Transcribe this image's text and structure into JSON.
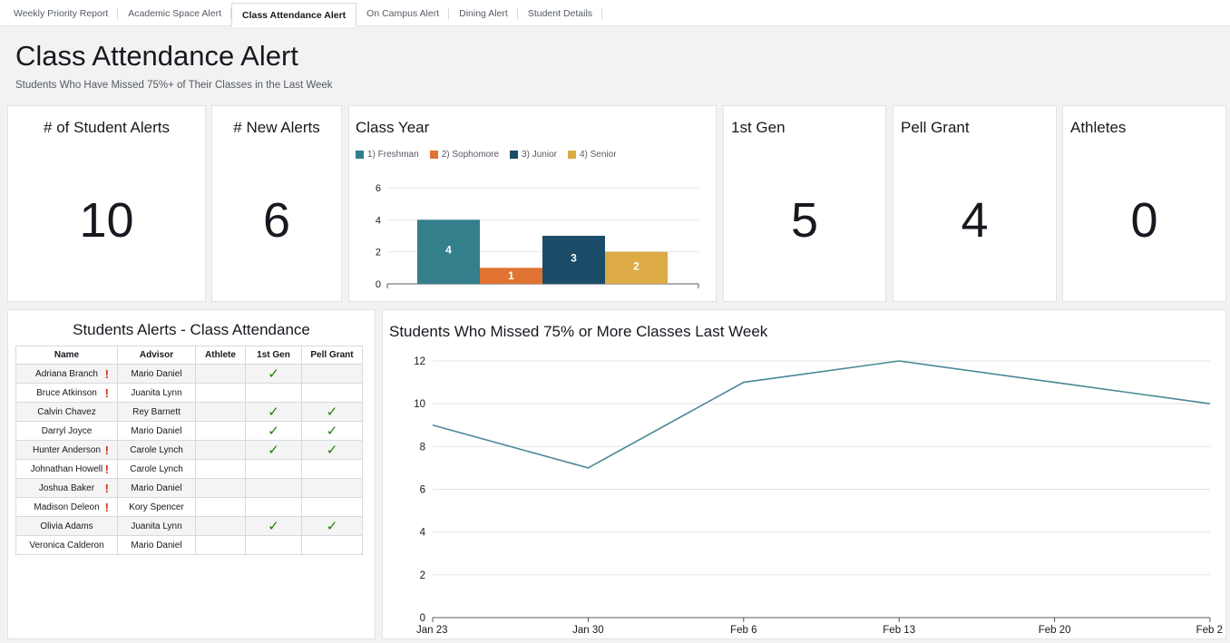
{
  "tabs": [
    {
      "label": "Weekly Priority Report",
      "active": false
    },
    {
      "label": "Academic Space Alert",
      "active": false
    },
    {
      "label": "Class Attendance Alert",
      "active": true
    },
    {
      "label": "On Campus Alert",
      "active": false
    },
    {
      "label": "Dining Alert",
      "active": false
    },
    {
      "label": "Student Details",
      "active": false
    }
  ],
  "page": {
    "title": "Class Attendance Alert",
    "subtitle": "Students Who Have Missed 75%+ of Their Classes in the Last Week"
  },
  "kpis": {
    "student_alerts": {
      "title": "# of Student Alerts",
      "value": "10"
    },
    "new_alerts": {
      "title": "# New Alerts",
      "value": "6"
    },
    "first_gen": {
      "title": "1st Gen",
      "value": "5"
    },
    "pell_grant": {
      "title": "Pell Grant",
      "value": "4"
    },
    "athletes": {
      "title": "Athletes",
      "value": "0"
    }
  },
  "colors": {
    "freshman": "#337f8c",
    "sophomore": "#e07331",
    "junior": "#1c4d68",
    "senior": "#dcab45",
    "line": "#4a8796",
    "alert": "#d13212",
    "check": "#1d8102"
  },
  "chart_data": [
    {
      "type": "bar",
      "title": "Class Year",
      "categories": [
        "1) Freshman",
        "2) Sophomore",
        "3) Junior",
        "4) Senior"
      ],
      "values": [
        4,
        1,
        3,
        2
      ],
      "ylim": [
        0,
        6
      ],
      "yticks": [
        "0",
        "2",
        "4",
        "6"
      ],
      "legend": "top-left",
      "grid": true
    },
    {
      "type": "line",
      "title": "Students Who Missed 75% or More Classes Last Week",
      "x": [
        "Jan 23",
        "Jan 30",
        "Feb 6",
        "Feb 13",
        "Feb 20",
        "Feb 2"
      ],
      "values": [
        9,
        7,
        11,
        12,
        11,
        10
      ],
      "ylim": [
        0,
        12
      ],
      "yticks": [
        "0",
        "2",
        "4",
        "6",
        "8",
        "10",
        "12"
      ],
      "grid": true
    }
  ],
  "table": {
    "title": "Students Alerts - Class Attendance",
    "headers": [
      "Name",
      "Advisor",
      "Athlete",
      "1st Gen",
      "Pell Grant"
    ],
    "alert_symbol": "!",
    "check_symbol": "✓",
    "rows": [
      {
        "name": "Adriana Branch",
        "alert": true,
        "advisor": "Mario Daniel",
        "athlete": false,
        "first_gen": true,
        "pell": false
      },
      {
        "name": "Bruce Atkinson",
        "alert": true,
        "advisor": "Juanita Lynn",
        "athlete": false,
        "first_gen": false,
        "pell": false
      },
      {
        "name": "Calvin Chavez",
        "alert": false,
        "advisor": "Rey Barnett",
        "athlete": false,
        "first_gen": true,
        "pell": true
      },
      {
        "name": "Darryl Joyce",
        "alert": false,
        "advisor": "Mario Daniel",
        "athlete": false,
        "first_gen": true,
        "pell": true
      },
      {
        "name": "Hunter Anderson",
        "alert": true,
        "advisor": "Carole Lynch",
        "athlete": false,
        "first_gen": true,
        "pell": true
      },
      {
        "name": "Johnathan Howell",
        "alert": true,
        "advisor": "Carole Lynch",
        "athlete": false,
        "first_gen": false,
        "pell": false
      },
      {
        "name": "Joshua Baker",
        "alert": true,
        "advisor": "Mario Daniel",
        "athlete": false,
        "first_gen": false,
        "pell": false
      },
      {
        "name": "Madison Deleon",
        "alert": true,
        "advisor": "Kory Spencer",
        "athlete": false,
        "first_gen": false,
        "pell": false
      },
      {
        "name": "Olivia Adams",
        "alert": false,
        "advisor": "Juanita Lynn",
        "athlete": false,
        "first_gen": true,
        "pell": true
      },
      {
        "name": "Veronica Calderon",
        "alert": false,
        "advisor": "Mario Daniel",
        "athlete": false,
        "first_gen": false,
        "pell": false
      }
    ]
  }
}
